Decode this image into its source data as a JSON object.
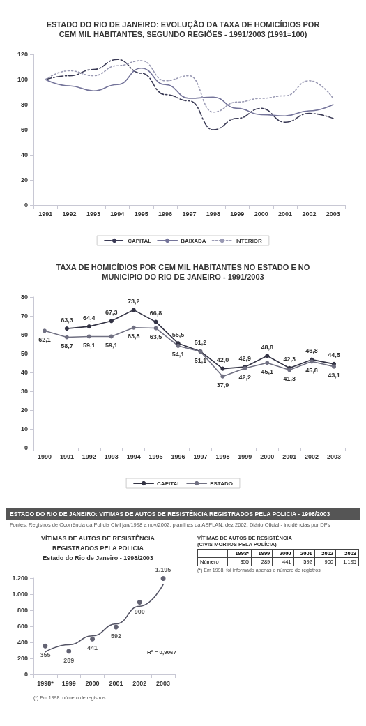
{
  "chart_data": [
    {
      "type": "line",
      "title": "ESTADO DO RIO DE JANEIRO: EVOLUÇÃO DA TAXA DE HOMICÍDIOS POR CEM MIL HABITANTES, SEGUNDO REGIÕES - 1991/2003 (1991=100)",
      "categories": [
        "1991",
        "1992",
        "1993",
        "1994",
        "1995",
        "1996",
        "1997",
        "1998",
        "1999",
        "2000",
        "2001",
        "2002",
        "2003"
      ],
      "series": [
        {
          "name": "CAPITAL",
          "color": "#3a3a55",
          "line_style": "dashed",
          "values": [
            100,
            103,
            108,
            116,
            105,
            88,
            83,
            60,
            69,
            77,
            66,
            73,
            69
          ]
        },
        {
          "name": "BAIXADA",
          "color": "#74749a",
          "line_style": "solid",
          "values": [
            100,
            95,
            91,
            96,
            109,
            96,
            85,
            86,
            77,
            72,
            71,
            75,
            80
          ]
        },
        {
          "name": "INTERIOR",
          "color": "#9a9ab4",
          "line_style": "dotted",
          "values": [
            100,
            107,
            103,
            111,
            115,
            99,
            103,
            74,
            82,
            85,
            87,
            99,
            85
          ]
        }
      ],
      "ylim": [
        0,
        120
      ],
      "yticks": [
        0,
        20,
        40,
        60,
        80,
        100,
        120
      ],
      "marker": "none",
      "legend": "bottom"
    },
    {
      "type": "line",
      "title": "TAXA DE HOMICÍDIOS POR CEM MIL HABITANTES NO ESTADO E NO MUNICÍPIO DO RIO DE JANEIRO - 1991/2003",
      "categories": [
        "1990",
        "1991",
        "1992",
        "1993",
        "1994",
        "1995",
        "1996",
        "1997",
        "1998",
        "1999",
        "2000",
        "2001",
        "2002",
        "2003"
      ],
      "series": [
        {
          "name": "CAPITAL",
          "color": "#333344",
          "values": [
            null,
            63.3,
            64.4,
            67.3,
            73.2,
            66.8,
            55.5,
            51.2,
            42.0,
            42.9,
            48.8,
            42.3,
            46.8,
            44.5
          ],
          "value_labels": [
            null,
            "63,3",
            "64,4",
            "67,3",
            "73,2",
            "66,8",
            "55,5",
            "51,2",
            "42,0",
            "42,9",
            "48,8",
            "42,3",
            "46,8",
            "44,5"
          ]
        },
        {
          "name": "ESTADO",
          "color": "#707082",
          "values": [
            62.1,
            58.7,
            59.1,
            59.1,
            63.8,
            63.5,
            54.1,
            51.1,
            37.9,
            42.2,
            45.1,
            41.3,
            45.8,
            43.1
          ],
          "value_labels": [
            "62,1",
            "58,7",
            "59,1",
            "59,1",
            "63,8",
            "63,5",
            "54,1",
            "51,1",
            "37,9",
            "42,2",
            "45,1",
            "41,3",
            "45,8",
            "43,1"
          ]
        }
      ],
      "ylim": [
        0,
        80
      ],
      "yticks": [
        0,
        10,
        20,
        30,
        40,
        50,
        60,
        70,
        80
      ],
      "marker": "circle",
      "legend": "bottom"
    },
    {
      "type": "scatter",
      "title": "ESTADO DO RIO DE JANEIRO: VÍTIMAS DE AUTOS DE RESISTÊNCIA REGISTRADOS PELA POLÍCIA - 1998/2003",
      "subtitle": "VÍTIMAS DE AUTOS DE RESISTÊNCIA REGISTRADOS PELA POLÍCIA",
      "categories": [
        "1998*",
        "1999",
        "2000",
        "2001",
        "2002",
        "2003"
      ],
      "series": [
        {
          "color": "#3c3c50",
          "values": [
            355,
            289,
            441,
            592,
            900,
            1195
          ],
          "value_labels": [
            "355",
            "289",
            "441",
            "592",
            "900",
            "1.195"
          ]
        },
        {
          "type": "line",
          "color": "#555566",
          "marker": "none",
          "values": [
            280,
            370,
            480,
            630,
            850,
            1120
          ]
        }
      ],
      "ylim": [
        0,
        1200
      ],
      "yticks": [
        0,
        200,
        400,
        600,
        800,
        {
          "value": 1000,
          "label": "1.000"
        },
        {
          "value": 1200,
          "label": "1.200"
        }
      ],
      "marker": "circle",
      "annotations": [
        "Fontes: Registros de Ocorrência da Polícia Civil jan/1998 a nov/2002; planilhas da ASPLAN, dez 2002: Diário Oficial - incidências por DPs",
        "Estado do Rio de Janeiro - 1998/2003",
        "R² = 0,9067",
        "(*) Em 1998: número de registros",
        "VÍTIMAS DE AUTOS DE RESISTÊNCIA",
        "(CIVIS MORTOS PELA POLÍCIA)",
        "Número",
        "(*) Em 1998, foi informado apenas o número de registros"
      ]
    }
  ]
}
